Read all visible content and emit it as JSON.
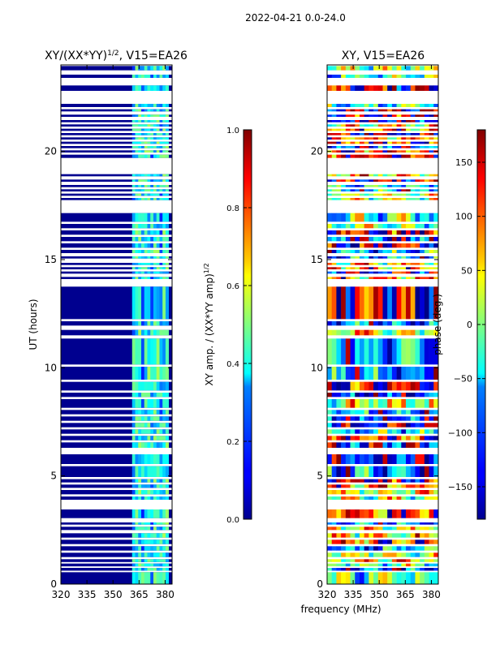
{
  "figure_title": "2022-04-21 0.0-24.0",
  "xlabel": "frequency (MHz)",
  "chart_data": [
    {
      "type": "heatmap",
      "title": "XY/(XX*YY)",
      "title_exp": "1/2",
      "title_suffix": ", V15=EA26",
      "x_range_mhz": [
        320,
        384
      ],
      "x_ticks": [
        320,
        335,
        350,
        365,
        380
      ],
      "y_range_hours": [
        0,
        24
      ],
      "y_ticks": [
        0,
        5,
        10,
        15,
        20
      ],
      "ylabel": "UT (hours)",
      "fill_color": "#00008f",
      "data_band_mhz": [
        361,
        382
      ],
      "data_present_hours": [
        [
          0.0,
          0.55
        ],
        [
          0.62,
          0.75
        ],
        [
          0.82,
          0.95
        ],
        [
          1.02,
          1.15
        ],
        [
          1.25,
          1.45
        ],
        [
          1.55,
          1.75
        ],
        [
          1.85,
          2.05
        ],
        [
          2.15,
          2.35
        ],
        [
          2.5,
          2.65
        ],
        [
          2.75,
          2.85
        ],
        [
          3.05,
          3.45
        ],
        [
          3.9,
          4.05
        ],
        [
          4.15,
          4.35
        ],
        [
          4.45,
          4.6
        ],
        [
          4.7,
          4.85
        ],
        [
          4.95,
          5.45
        ],
        [
          5.55,
          6.0
        ],
        [
          6.3,
          6.55
        ],
        [
          6.65,
          6.85
        ],
        [
          6.95,
          7.15
        ],
        [
          7.25,
          7.45
        ],
        [
          7.55,
          7.75
        ],
        [
          7.85,
          8.05
        ],
        [
          8.15,
          8.55
        ],
        [
          8.65,
          8.85
        ],
        [
          8.95,
          9.35
        ],
        [
          9.45,
          10.05
        ],
        [
          10.15,
          11.35
        ],
        [
          11.5,
          11.75
        ],
        [
          11.95,
          12.15
        ],
        [
          12.25,
          13.75
        ],
        [
          14.1,
          14.2
        ],
        [
          14.35,
          14.45
        ],
        [
          14.55,
          14.65
        ],
        [
          14.75,
          14.85
        ],
        [
          15.05,
          15.15
        ],
        [
          15.3,
          15.45
        ],
        [
          15.55,
          15.75
        ],
        [
          15.85,
          16.05
        ],
        [
          16.15,
          16.35
        ],
        [
          16.45,
          16.65
        ],
        [
          16.75,
          17.15
        ],
        [
          17.75,
          17.85
        ],
        [
          17.95,
          18.05
        ],
        [
          18.15,
          18.25
        ],
        [
          18.35,
          18.45
        ],
        [
          18.6,
          18.7
        ],
        [
          18.85,
          18.95
        ],
        [
          19.7,
          19.85
        ],
        [
          19.95,
          20.05
        ],
        [
          20.15,
          20.25
        ],
        [
          20.35,
          20.45
        ],
        [
          20.55,
          20.65
        ],
        [
          20.75,
          20.85
        ],
        [
          20.95,
          21.05
        ],
        [
          21.15,
          21.25
        ],
        [
          21.35,
          21.45
        ],
        [
          21.6,
          21.7
        ],
        [
          21.85,
          21.95
        ],
        [
          22.05,
          22.2
        ],
        [
          22.8,
          23.05
        ],
        [
          23.4,
          23.55
        ],
        [
          23.75,
          23.95
        ]
      ],
      "colorbar": {
        "label": "XY amp. / (XX*YY amp)",
        "label_exp": "1/2",
        "range": [
          0.0,
          1.0
        ],
        "ticks": [
          "0.0",
          "0.2",
          "0.4",
          "0.6",
          "0.8",
          "1.0"
        ]
      }
    },
    {
      "type": "heatmap",
      "title": "XY, V15=EA26",
      "x_range_mhz": [
        320,
        384
      ],
      "x_ticks": [
        320,
        335,
        350,
        365,
        380
      ],
      "y_range_hours": [
        0,
        24
      ],
      "y_ticks": [
        0,
        5,
        10,
        15,
        20
      ],
      "data_present_hours": [
        [
          0.0,
          0.55
        ],
        [
          0.62,
          0.75
        ],
        [
          0.82,
          0.95
        ],
        [
          1.02,
          1.15
        ],
        [
          1.25,
          1.45
        ],
        [
          1.55,
          1.75
        ],
        [
          1.85,
          2.05
        ],
        [
          2.15,
          2.35
        ],
        [
          2.5,
          2.65
        ],
        [
          2.75,
          2.85
        ],
        [
          3.05,
          3.45
        ],
        [
          3.9,
          4.05
        ],
        [
          4.15,
          4.35
        ],
        [
          4.45,
          4.6
        ],
        [
          4.7,
          4.85
        ],
        [
          4.95,
          5.45
        ],
        [
          5.55,
          6.0
        ],
        [
          6.3,
          6.55
        ],
        [
          6.65,
          6.85
        ],
        [
          6.95,
          7.15
        ],
        [
          7.25,
          7.45
        ],
        [
          7.55,
          7.75
        ],
        [
          7.85,
          8.05
        ],
        [
          8.15,
          8.55
        ],
        [
          8.65,
          8.85
        ],
        [
          8.95,
          9.35
        ],
        [
          9.45,
          10.05
        ],
        [
          10.15,
          11.35
        ],
        [
          11.5,
          11.75
        ],
        [
          11.95,
          12.15
        ],
        [
          12.25,
          13.75
        ],
        [
          14.1,
          14.2
        ],
        [
          14.35,
          14.45
        ],
        [
          14.55,
          14.65
        ],
        [
          14.75,
          14.85
        ],
        [
          15.05,
          15.15
        ],
        [
          15.3,
          15.45
        ],
        [
          15.55,
          15.75
        ],
        [
          15.85,
          16.05
        ],
        [
          16.15,
          16.35
        ],
        [
          16.45,
          16.65
        ],
        [
          16.75,
          17.15
        ],
        [
          17.75,
          17.85
        ],
        [
          17.95,
          18.05
        ],
        [
          18.15,
          18.25
        ],
        [
          18.35,
          18.45
        ],
        [
          18.6,
          18.7
        ],
        [
          18.85,
          18.95
        ],
        [
          19.7,
          19.85
        ],
        [
          19.95,
          20.05
        ],
        [
          20.15,
          20.25
        ],
        [
          20.35,
          20.45
        ],
        [
          20.55,
          20.65
        ],
        [
          20.75,
          20.85
        ],
        [
          20.95,
          21.05
        ],
        [
          21.15,
          21.25
        ],
        [
          21.35,
          21.45
        ],
        [
          21.6,
          21.7
        ],
        [
          21.85,
          21.95
        ],
        [
          22.05,
          22.2
        ],
        [
          22.8,
          23.05
        ],
        [
          23.4,
          23.55
        ],
        [
          23.75,
          23.95
        ]
      ],
      "colorbar": {
        "label": "phase (deg.)",
        "range": [
          -180,
          180
        ],
        "ticks": [
          "−150",
          "−100",
          "−50",
          "0",
          "50",
          "100",
          "150"
        ]
      }
    }
  ]
}
